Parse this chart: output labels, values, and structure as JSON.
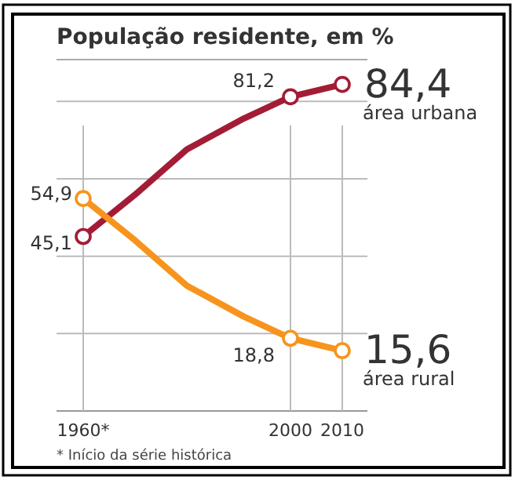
{
  "chart_data": {
    "type": "line",
    "title": "População residente, em %",
    "x": [
      1960,
      1970,
      1980,
      1991,
      2000,
      2010
    ],
    "series": [
      {
        "name": "área urbana",
        "color": "#a31c35",
        "values": [
          45.1,
          55.9,
          67.6,
          75.6,
          81.2,
          84.4
        ],
        "value_labels": [
          "45,1",
          null,
          null,
          null,
          "81,2",
          "84,4"
        ]
      },
      {
        "name": "área rural",
        "color": "#f7941d",
        "values": [
          54.9,
          44.1,
          32.4,
          24.4,
          18.8,
          15.6
        ],
        "value_labels": [
          "54,9",
          null,
          null,
          null,
          "18,8",
          "15,6"
        ]
      }
    ],
    "xlim": [
      1960,
      2010
    ],
    "xticks": [
      {
        "value": 1960,
        "label": "1960*"
      },
      2000,
      2010
    ],
    "ylim": [
      0,
      90
    ],
    "yticks": [
      0,
      {
        "value": 20,
        "label": null
      },
      {
        "value": 40,
        "label": null
      },
      {
        "value": 60,
        "label": null
      },
      {
        "value": 80,
        "label": null
      }
    ],
    "tick_labels": "x",
    "grid": true,
    "marker": "circle",
    "line_style": "solid",
    "annotations": [
      "* Início da série histórica"
    ]
  }
}
